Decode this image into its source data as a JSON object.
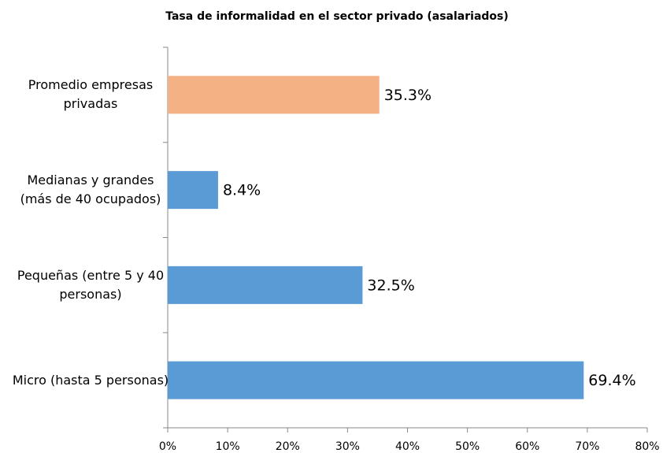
{
  "chart_data": {
    "type": "hbar",
    "title": "Tasa de informalidad en el sector privado (asalariados)",
    "categories": [
      "Promedio empresas privadas",
      "Medianas y grandes (más de 40 ocupados)",
      "Pequeñas  (entre 5 y 40 personas)",
      "Micro (hasta 5 personas)"
    ],
    "values": [
      35.3,
      8.4,
      32.5,
      69.4
    ],
    "value_labels": [
      "35.3%",
      "8.4%",
      "32.5%",
      "69.4%"
    ],
    "colors": [
      "#f4b183",
      "#5b9bd5",
      "#5b9bd5",
      "#5b9bd5"
    ],
    "xlim": [
      0,
      80
    ],
    "xticks": [
      {
        "value": 0,
        "label": "0%"
      },
      {
        "value": 10,
        "label": "10%"
      },
      {
        "value": 20,
        "label": "20%"
      },
      {
        "value": 30,
        "label": "30%"
      },
      {
        "value": 40,
        "label": "40%"
      },
      {
        "value": 50,
        "label": "50%"
      },
      {
        "value": 60,
        "label": "60%"
      },
      {
        "value": 70,
        "label": "70%"
      },
      {
        "value": 80,
        "label": "80%"
      }
    ],
    "grid": false
  }
}
